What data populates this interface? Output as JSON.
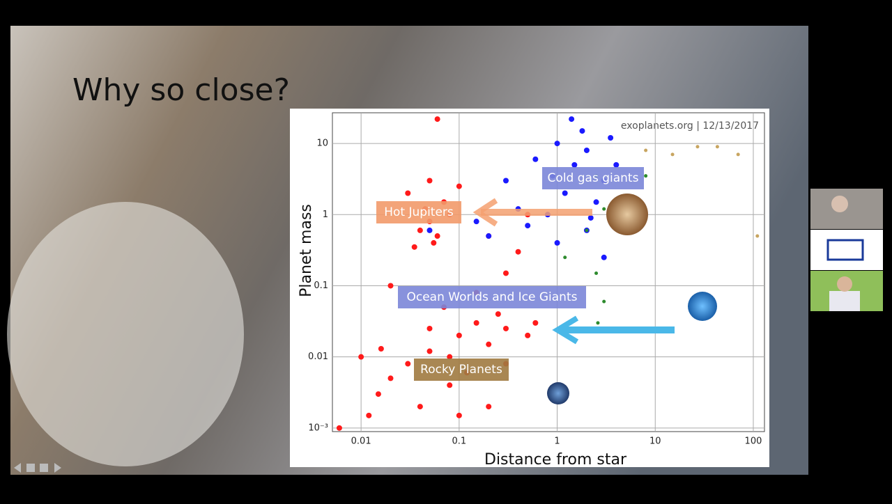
{
  "slide": {
    "title": "Why so close?"
  },
  "chart_data": {
    "type": "scatter",
    "annotation": "exoplanets.org | 12/13/2017",
    "x_label": "Distance from star",
    "y_label": "Planet mass",
    "labels": [
      "Cold gas giants",
      "Hot Jupiters",
      "Ocean Worlds and Ice Giants",
      "Rocky Planets"
    ],
    "log_x": true,
    "log_y": true,
    "grid": true,
    "xlim": [
      0.0051,
      130
    ],
    "ylim": [
      0.00089,
      27
    ],
    "xticks": [
      0.01,
      0.1,
      1,
      10,
      100
    ],
    "yticks": [
      {
        "value": 0.001,
        "label": "10⁻³"
      },
      0.01,
      0.1,
      1,
      10
    ],
    "series": [
      {
        "color": "#ff1a1a",
        "x": [
          0.04,
          0.05,
          0.06,
          0.045,
          0.055,
          0.07,
          0.03,
          0.05,
          0.06,
          0.08,
          0.035,
          0.1,
          0.1,
          0.15,
          0.2,
          0.08,
          0.05,
          0.3,
          0.5,
          0.03,
          0.02,
          0.015,
          0.012,
          0.006,
          0.04,
          0.08,
          0.12,
          0.2,
          0.1,
          0.25,
          0.6,
          0.07,
          0.15,
          0.3,
          0.4,
          0.2,
          0.5,
          0.02,
          0.016,
          0.01,
          0.3,
          0.05
        ],
        "values": [
          0.6,
          0.8,
          0.5,
          1.2,
          0.4,
          1.5,
          2,
          3,
          22,
          1,
          0.35,
          2.5,
          0.02,
          0.03,
          0.015,
          0.01,
          0.012,
          0.025,
          0.02,
          0.008,
          0.005,
          0.003,
          0.0015,
          0.001,
          0.002,
          0.004,
          0.006,
          0.002,
          0.0015,
          0.04,
          0.03,
          0.05,
          0.08,
          0.15,
          0.3,
          0.5,
          1,
          0.1,
          0.013,
          0.01,
          0.008,
          0.025
        ]
      },
      {
        "color": "#1a1aff",
        "x": [
          1,
          2,
          1.5,
          3,
          1.2,
          2.5,
          0.8,
          1.8,
          0.5,
          0.3,
          0.2,
          4,
          1,
          2,
          3,
          0.15,
          0.6,
          1.4,
          2.2,
          0.9,
          0.4,
          0.05,
          5,
          3.5
        ],
        "values": [
          10,
          8,
          5,
          3,
          2,
          1.5,
          1,
          15,
          0.7,
          3,
          0.5,
          5,
          0.4,
          0.6,
          0.25,
          0.8,
          6,
          22,
          0.9,
          3.5,
          1.2,
          0.6,
          1.2,
          12
        ]
      },
      {
        "color": "#2e8b2e",
        "x": [
          2.5,
          3,
          2,
          2.5,
          3,
          2.6,
          1.2,
          8
        ],
        "values": [
          3.5,
          1.2,
          0.6,
          0.15,
          0.06,
          0.03,
          0.25,
          3.5
        ]
      },
      {
        "color": "#c8a560",
        "x": [
          8,
          15,
          27,
          43,
          70,
          110
        ],
        "values": [
          8,
          7,
          9,
          9,
          7,
          0.5
        ]
      }
    ]
  }
}
